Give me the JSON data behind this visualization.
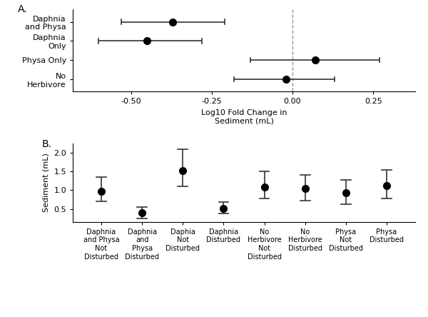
{
  "panel_a": {
    "title": "A.",
    "xlabel": "Log10 Fold Change in\nSediment (mL)",
    "categories": [
      "Daphnia\nand Physa",
      "Daphnia\nOnly",
      "Physa Only",
      "No\nHerbivore"
    ],
    "means": [
      -0.37,
      -0.45,
      0.07,
      -0.02
    ],
    "ci_low": [
      -0.53,
      -0.6,
      -0.13,
      -0.18
    ],
    "ci_high": [
      -0.21,
      -0.28,
      0.27,
      0.13
    ],
    "xlim": [
      -0.68,
      0.38
    ],
    "xticks": [
      -0.5,
      -0.25,
      0.0,
      0.25
    ]
  },
  "panel_b": {
    "title": "B.",
    "ylabel": "Sediment (mL)",
    "categories": [
      "Daphnia\nand Physa\nNot\nDisturbed",
      "Daphnia\nand\nPhysa\nDisturbed",
      "Daphia\nNot\nDisturbed",
      "Daphnia\nDisturbed",
      "No\nHerbivore\nNot\nDisturbed",
      "No\nHerbivore\nDisturbed",
      "Physa\nNot\nDisturbed",
      "Physa\nDisturbed"
    ],
    "means": [
      0.97,
      0.4,
      1.52,
      0.52,
      1.08,
      1.05,
      0.93,
      1.12
    ],
    "ci_low": [
      0.7,
      0.25,
      1.1,
      0.38,
      0.77,
      0.73,
      0.63,
      0.78
    ],
    "ci_high": [
      1.35,
      0.55,
      2.1,
      0.68,
      1.5,
      1.42,
      1.27,
      1.55
    ],
    "ylim": [
      0.15,
      2.25
    ],
    "yticks": [
      0.5,
      1.0,
      1.5,
      2.0
    ]
  },
  "background_color": "#ffffff",
  "dot_color": "#000000",
  "line_color": "#333333",
  "dot_size": 7,
  "fontsize": 8,
  "label_fontsize": 8,
  "title_fontsize": 10
}
